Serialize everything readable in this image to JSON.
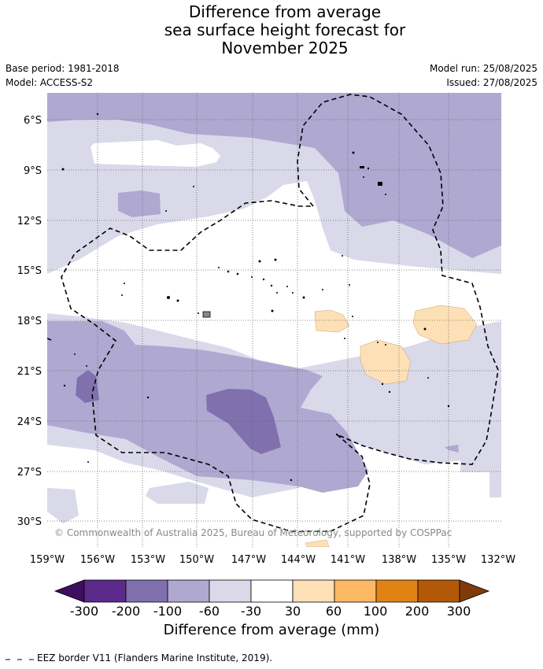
{
  "title": {
    "line1": "Difference from average",
    "line2": "sea surface height forecast for",
    "line3": "November 2025"
  },
  "meta": {
    "base_period": "Base period: 1981-2018",
    "model": "Model: ACCESS-S2",
    "model_run": "Model run: 25/08/2025",
    "issued": "Issued: 27/08/2025"
  },
  "map": {
    "lat_ticks": [
      "6°S",
      "9°S",
      "12°S",
      "15°S",
      "18°S",
      "21°S",
      "24°S",
      "27°S",
      "30°S"
    ],
    "lon_ticks": [
      "159°W",
      "156°W",
      "153°W",
      "150°W",
      "147°W",
      "144°W",
      "141°W",
      "138°W",
      "135°W",
      "132°W"
    ],
    "attribution": "© Commonwealth of Australia 2025, Bureau of Meteorology, supported by COSPPac"
  },
  "colorbar": {
    "title": "Difference from average (mm)",
    "ticks": [
      "-300",
      "-200",
      "-100",
      "-60",
      "-30",
      "30",
      "60",
      "100",
      "200",
      "300"
    ],
    "colors": [
      "#3f0f5e",
      "#5b2a8a",
      "#8070ae",
      "#afa8d1",
      "#d9d9ea",
      "#ffffff",
      "#fee0b6",
      "#fdb863",
      "#e08214",
      "#b35806",
      "#7f3b08"
    ]
  },
  "legend": {
    "eez": "EEZ border V11 (Flanders Marine Institute, 2019)."
  }
}
